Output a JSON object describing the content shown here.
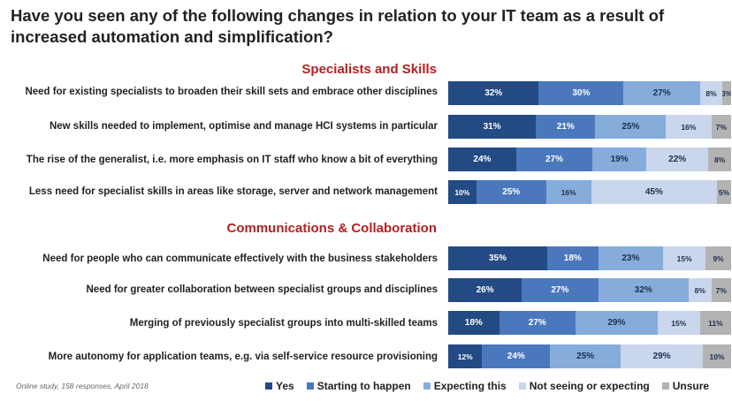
{
  "title": "Have you seen any of the following changes in relation to your IT team as a result of increased automation and simplification?",
  "source": "Online study, 158 responses, April 2018",
  "colors": {
    "Yes": "#234a82",
    "Starting to happen": "#4b78bd",
    "Expecting this": "#86acdc",
    "Not seeing or expecting": "#c9d6ec",
    "Unsure": "#b3b3b3"
  },
  "chart_data": {
    "type": "bar",
    "orientation": "horizontal",
    "stacked": true,
    "unit": "%",
    "series_names": [
      "Yes",
      "Starting to happen",
      "Expecting this",
      "Not seeing or expecting",
      "Unsure"
    ],
    "groups": [
      {
        "title": "Specialists and Skills",
        "rows": [
          {
            "label": "Need for existing specialists to broaden their skill sets and embrace other disciplines",
            "values": [
              32,
              30,
              27,
              8,
              3
            ]
          },
          {
            "label": "New skills needed to implement, optimise and manage HCI systems in particular",
            "values": [
              31,
              21,
              25,
              16,
              7
            ]
          },
          {
            "label": "The rise of the generalist, i.e. more emphasis on IT staff who know a bit of everything",
            "values": [
              24,
              27,
              19,
              22,
              8
            ]
          },
          {
            "label": "Less need for specialist skills in areas like storage, server and network management",
            "values": [
              10,
              25,
              16,
              45,
              5
            ]
          }
        ]
      },
      {
        "title": "Communications & Collaboration",
        "rows": [
          {
            "label": "Need for people who can communicate effectively with the business stakeholders",
            "values": [
              35,
              18,
              23,
              15,
              9
            ]
          },
          {
            "label": "Need for greater collaboration between specialist groups and disciplines",
            "values": [
              26,
              27,
              32,
              8,
              7
            ]
          },
          {
            "label": "Merging of previously specialist groups into multi-skilled teams",
            "values": [
              18,
              27,
              29,
              15,
              11
            ]
          },
          {
            "label": "More autonomy for application teams, e.g. via self-service resource provisioning",
            "values": [
              12,
              24,
              25,
              29,
              10
            ]
          }
        ]
      }
    ]
  }
}
